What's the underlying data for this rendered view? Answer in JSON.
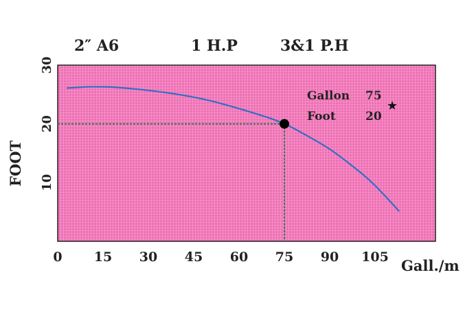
{
  "header": {
    "model": "2″  A6",
    "power": "1 H.P",
    "phase": "3&1  P.H"
  },
  "chart_data": {
    "type": "line",
    "title": "",
    "xlabel": "Gall./m",
    "ylabel": "FOOT",
    "xlim": [
      0,
      125
    ],
    "ylim": [
      0,
      30
    ],
    "x_ticks": [
      0,
      15,
      30,
      45,
      60,
      75,
      90,
      105
    ],
    "x_tick_labels": [
      "0",
      "15",
      "30",
      "45",
      "60",
      "75",
      "90",
      "105"
    ],
    "y_ticks": [
      10,
      20,
      30
    ],
    "y_tick_labels": [
      "10",
      "20",
      "30"
    ],
    "grid": true,
    "series": [
      {
        "x": [
          3,
          10,
          15,
          20,
          30,
          40,
          50,
          60,
          70,
          75,
          80,
          90,
          100,
          105,
          110,
          113
        ],
        "y": [
          26.1,
          26.3,
          26.3,
          26.2,
          25.7,
          25.0,
          24.0,
          22.6,
          21.0,
          20.0,
          18.7,
          15.7,
          11.8,
          9.5,
          6.8,
          5.1
        ]
      }
    ],
    "operating_point": {
      "x": 75,
      "y": 20
    },
    "annotation": {
      "gallon_label": "Gallon",
      "gallon_value": "75",
      "foot_label": "Foot",
      "foot_value": "20"
    },
    "colors": {
      "plot_background": "#ef6fb4",
      "grid": "#ffffff",
      "curve": "#2f6fc4",
      "guide": "#2c7a4b",
      "marker": "#000000"
    }
  }
}
